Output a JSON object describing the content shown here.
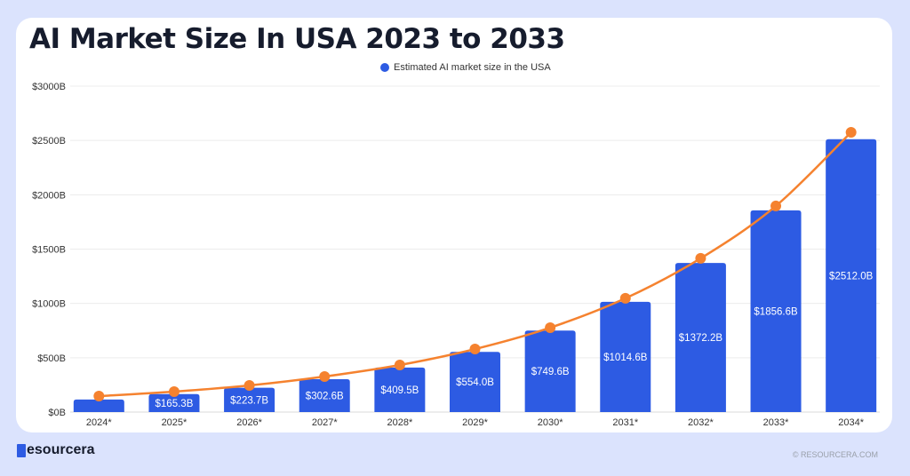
{
  "title": "AI Market Size In USA 2023 to 2033",
  "colors": {
    "bar": "#2d5be3",
    "line": "#f5822f",
    "background": "#dbe3fd"
  },
  "footer": {
    "logo_text": "esourcera",
    "copyright": "© RESOURCERA.COM"
  },
  "chart_data": {
    "type": "bar",
    "title": "AI Market Size In USA 2023 to 2033",
    "categories": [
      "2024*",
      "2025*",
      "2026*",
      "2027*",
      "2028*",
      "2029*",
      "2030*",
      "2031*",
      "2032*",
      "2033*",
      "2034*"
    ],
    "series": [
      {
        "name": "Estimated AI market size in the USA",
        "type": "bar",
        "values": [
          115,
          165.3,
          223.7,
          302.6,
          409.5,
          554.0,
          749.6,
          1014.6,
          1372.2,
          1856.6,
          2512.0
        ],
        "data_labels": [
          "",
          "$165.3B",
          "$223.7B",
          "$302.6B",
          "$409.5B",
          "$554.0B",
          "$749.6B",
          "$1014.6B",
          "$1372.2B",
          "$1856.6B",
          "$2512.0B"
        ]
      },
      {
        "type": "line",
        "values": [
          147,
          188,
          245,
          327,
          433,
          580,
          777,
          1047,
          1415,
          1897,
          2575
        ]
      }
    ],
    "yticks": [
      "$0B",
      "$500B",
      "$1000B",
      "$1500B",
      "$2000B",
      "$2500B",
      "$3000B"
    ],
    "ylim": [
      0,
      3000
    ],
    "grid": true,
    "legend": "top-center"
  }
}
